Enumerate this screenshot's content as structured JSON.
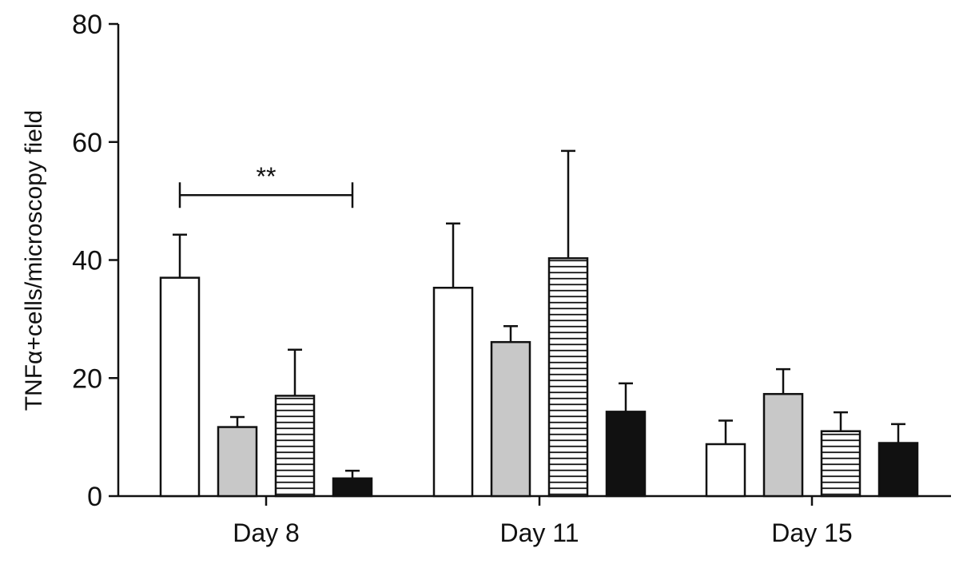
{
  "chart_data": {
    "type": "bar",
    "title": "",
    "xlabel": "",
    "ylabel": "TNFα+cells/microscopy field",
    "ylim": [
      0,
      80
    ],
    "yticks": [
      0,
      20,
      40,
      60,
      80
    ],
    "categories": [
      "Day 8",
      "Day 11",
      "Day 15"
    ],
    "grid": false,
    "legend": "none",
    "series": [
      {
        "fill": "white",
        "color": "#ffffff",
        "values": [
          37.0,
          35.3,
          8.8
        ],
        "errors": [
          7.3,
          10.9,
          4.0
        ]
      },
      {
        "fill": "gray",
        "color": "#c8c8c8",
        "values": [
          11.7,
          26.1,
          17.3
        ],
        "errors": [
          1.7,
          2.7,
          4.2
        ]
      },
      {
        "fill": "horizontal-stripes",
        "color": "#ffffff",
        "values": [
          17.0,
          40.3,
          11.0
        ],
        "errors": [
          7.8,
          18.2,
          3.2
        ]
      },
      {
        "fill": "black",
        "color": "#111111",
        "values": [
          3.0,
          14.3,
          9.0
        ],
        "errors": [
          1.3,
          4.8,
          3.2
        ]
      }
    ],
    "annotations": [
      {
        "text": "**",
        "category": "Day 8",
        "from_series": 0,
        "to_series": 3,
        "y": 51
      }
    ]
  }
}
